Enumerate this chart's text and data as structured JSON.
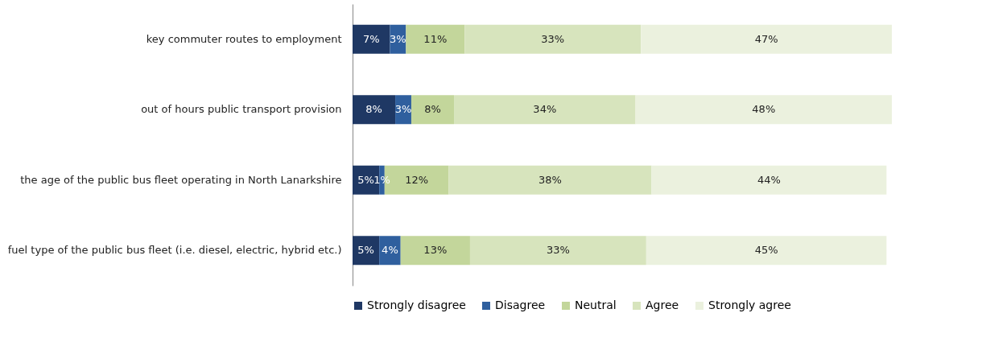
{
  "chart_data": {
    "type": "bar",
    "orientation": "horizontal",
    "stacked": true,
    "legend": "bottom",
    "categories": [
      "key commuter routes to employment",
      "out of hours public transport provision",
      "the age of the public bus fleet operating in North Lanarkshire",
      "fuel type of the public bus fleet (i.e.  diesel, electric, hybrid etc.)"
    ],
    "series": [
      {
        "name": "Strongly disagree",
        "color": "#1f3864",
        "values": [
          7,
          8,
          5,
          5
        ],
        "value_labels": [
          "7%",
          "8%",
          "5%",
          "5%"
        ]
      },
      {
        "name": "Disagree",
        "color": "#2f5f9e",
        "values": [
          3,
          3,
          1,
          4
        ],
        "value_labels": [
          "3%",
          "3%",
          "1%",
          "4%"
        ]
      },
      {
        "name": "Neutral",
        "color": "#c3d69b",
        "values": [
          11,
          8,
          12,
          13
        ],
        "value_labels": [
          "11%",
          "8%",
          "12%",
          "13%"
        ]
      },
      {
        "name": "Agree",
        "color": "#d7e4bd",
        "values": [
          33,
          34,
          38,
          33
        ],
        "value_labels": [
          "33%",
          "34%",
          "38%",
          "33%"
        ]
      },
      {
        "name": "Strongly agree",
        "color": "#ebf1de",
        "values": [
          47,
          48,
          44,
          45
        ],
        "value_labels": [
          "47%",
          "48%",
          "44%",
          "45%"
        ]
      }
    ]
  }
}
